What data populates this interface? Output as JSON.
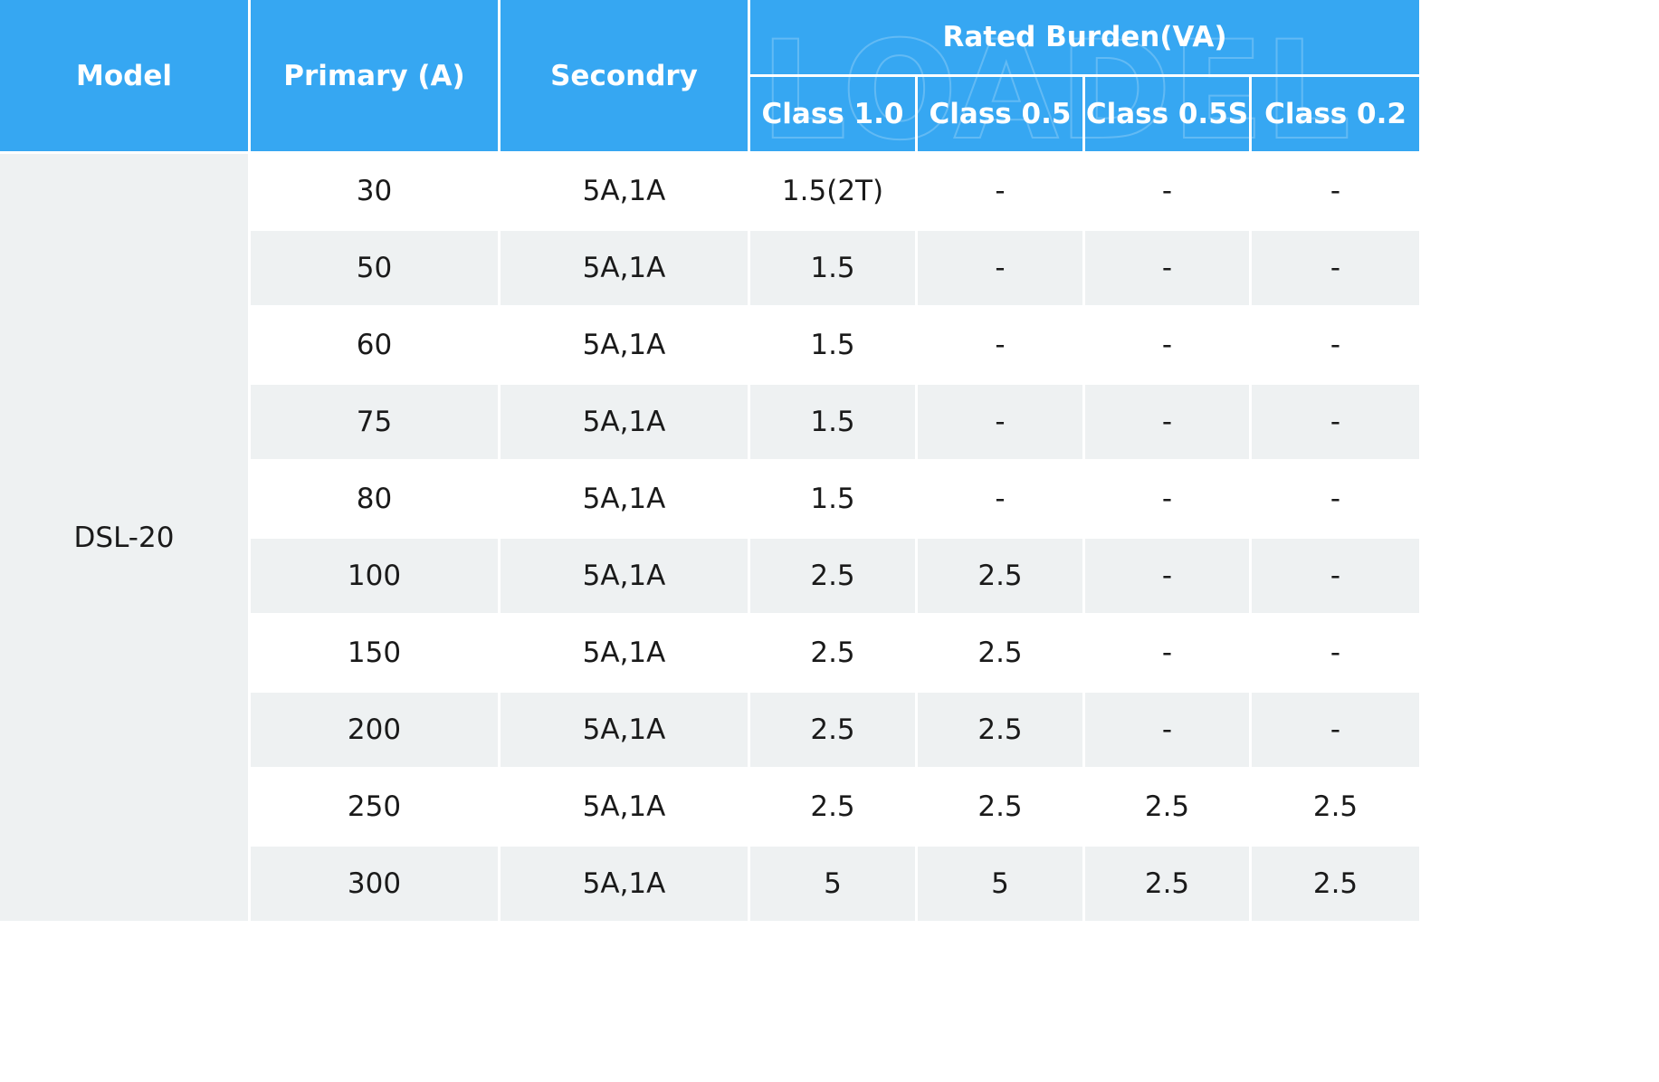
{
  "header": {
    "model": "Model",
    "primary": "Primary (A)",
    "secondary": "Secondry",
    "rated_burden": "Rated Burden(VA)",
    "classes": [
      "Class 1.0",
      "Class 0.5",
      "Class 0.5S",
      "Class 0.2"
    ]
  },
  "watermark_text": "LOADEL",
  "colors": {
    "header_bg": "#36a7f2",
    "header_text": "#ffffff",
    "row_alt_bg": "#eef1f2"
  },
  "model": "DSL-20",
  "rows": [
    {
      "primary": "30",
      "secondary": "5A,1A",
      "c10": "1.5(2T)",
      "c05": "-",
      "c05s": "-",
      "c02": "-"
    },
    {
      "primary": "50",
      "secondary": "5A,1A",
      "c10": "1.5",
      "c05": "-",
      "c05s": "-",
      "c02": "-"
    },
    {
      "primary": "60",
      "secondary": "5A,1A",
      "c10": "1.5",
      "c05": "-",
      "c05s": "-",
      "c02": "-"
    },
    {
      "primary": "75",
      "secondary": "5A,1A",
      "c10": "1.5",
      "c05": "-",
      "c05s": "-",
      "c02": "-"
    },
    {
      "primary": "80",
      "secondary": "5A,1A",
      "c10": "1.5",
      "c05": "-",
      "c05s": "-",
      "c02": "-"
    },
    {
      "primary": "100",
      "secondary": "5A,1A",
      "c10": "2.5",
      "c05": "2.5",
      "c05s": "-",
      "c02": "-"
    },
    {
      "primary": "150",
      "secondary": "5A,1A",
      "c10": "2.5",
      "c05": "2.5",
      "c05s": "-",
      "c02": "-"
    },
    {
      "primary": "200",
      "secondary": "5A,1A",
      "c10": "2.5",
      "c05": "2.5",
      "c05s": "-",
      "c02": "-"
    },
    {
      "primary": "250",
      "secondary": "5A,1A",
      "c10": "2.5",
      "c05": "2.5",
      "c05s": "2.5",
      "c02": "2.5"
    },
    {
      "primary": "300",
      "secondary": "5A,1A",
      "c10": "5",
      "c05": "5",
      "c05s": "2.5",
      "c02": "2.5"
    }
  ]
}
